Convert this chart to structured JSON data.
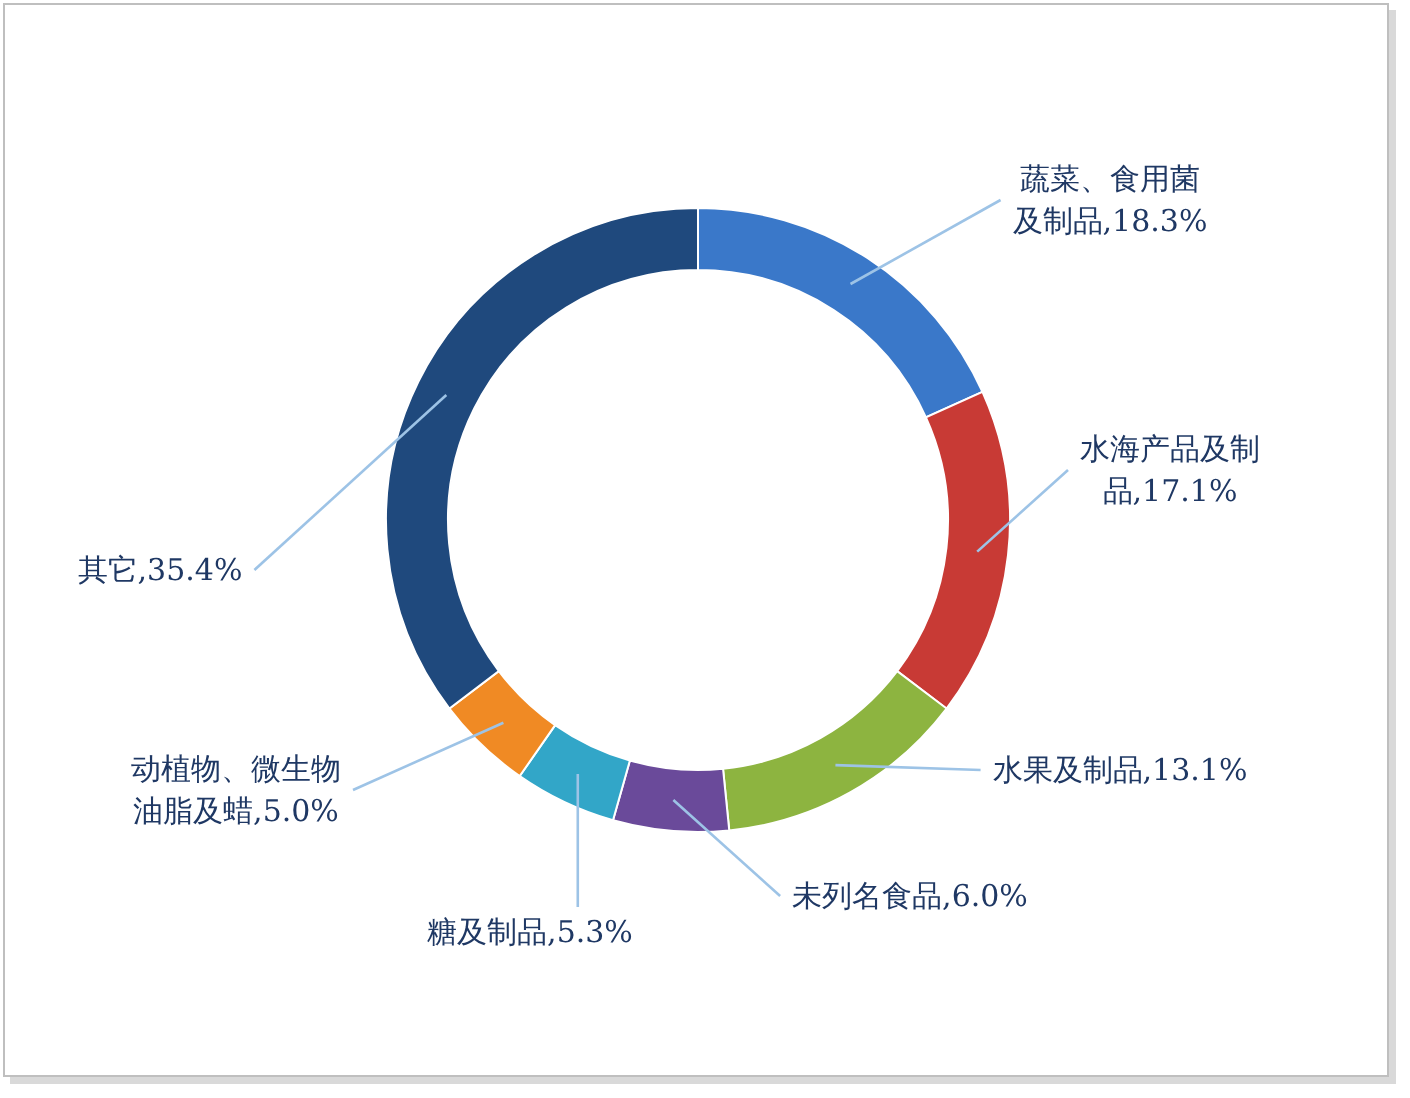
{
  "chart_data": {
    "type": "donut",
    "categories": [
      "蔬菜、食用菌及制品",
      "水海产品及制品",
      "水果及制品",
      "未列名食品",
      "糖及制品",
      "动植物、微生物油脂及蜡",
      "其它"
    ],
    "values": [
      18.3,
      17.1,
      13.1,
      6.0,
      5.3,
      5.0,
      35.4
    ],
    "value_labels": [
      "18.3%",
      "17.1%",
      "13.1%",
      "6.0%",
      "5.3%",
      "5.0%",
      "35.4%"
    ],
    "colors": [
      "#3a78c9",
      "#c83a35",
      "#8db440",
      "#6a4a9a",
      "#32a6c8",
      "#f08a24",
      "#1f497d"
    ]
  }
}
